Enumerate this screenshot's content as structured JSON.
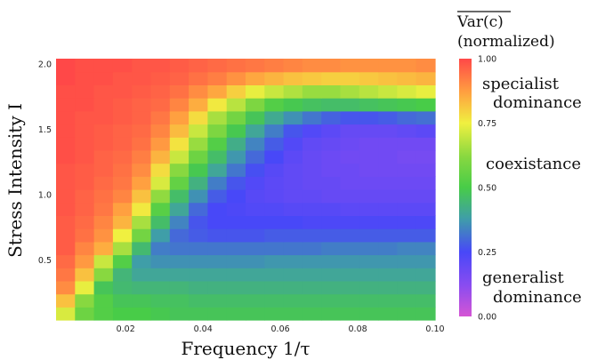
{
  "chart_data": {
    "type": "heatmap",
    "xlabel": "Frequency 1/τ",
    "ylabel": "Stress Intensity I",
    "x_range": [
      0.002,
      0.1
    ],
    "y_range": [
      0.04,
      2.04
    ],
    "x_ticks": [
      0.02,
      0.04,
      0.06,
      0.08,
      0.1
    ],
    "x_tick_labels": [
      "0.02",
      "0.04",
      "0.06",
      "0.08",
      "0.10"
    ],
    "y_ticks": [
      0.5,
      1.0,
      1.5,
      2.0
    ],
    "y_tick_labels": [
      "0.5",
      "1.0",
      "1.5",
      "2.0"
    ],
    "n_cols": 20,
    "n_rows": 20,
    "colorbar": {
      "title_line1": "Var(c)",
      "title_line2": "(normalized)",
      "range": [
        0,
        1
      ],
      "ticks": [
        0.0,
        0.25,
        0.5,
        0.75,
        1.0
      ],
      "tick_labels": [
        "0.00",
        "0.25",
        "0.50",
        "0.75",
        "1.00"
      ],
      "stops": [
        {
          "v": 0.0,
          "color": "#d555d4"
        },
        {
          "v": 0.12,
          "color": "#8a4cf0"
        },
        {
          "v": 0.25,
          "color": "#4848f8"
        },
        {
          "v": 0.38,
          "color": "#3f9ea8"
        },
        {
          "v": 0.5,
          "color": "#48cc48"
        },
        {
          "v": 0.62,
          "color": "#88d840"
        },
        {
          "v": 0.75,
          "color": "#f0f040"
        },
        {
          "v": 0.87,
          "color": "#ffa040"
        },
        {
          "v": 1.0,
          "color": "#ff4848"
        }
      ],
      "annotations": [
        {
          "line1": "specialist",
          "line2": "dominance"
        },
        {
          "line1": "coexistance",
          "line2": ""
        },
        {
          "line1": "generalist",
          "line2": "dominance"
        }
      ]
    },
    "description_of_values": "values[row][col]; row 0 = lowest I (~0.09), row 19 = highest I (~2.0); col 0 = lowest frequency (~0.004), col 19 = highest (~0.10). Normalized Var(c) in [0,1].",
    "values": [
      [
        0.72,
        0.57,
        0.52,
        0.5,
        0.5,
        0.49,
        0.48,
        0.48,
        0.48,
        0.48,
        0.48,
        0.48,
        0.48,
        0.48,
        0.48,
        0.48,
        0.48,
        0.48,
        0.48,
        0.48
      ],
      [
        0.82,
        0.62,
        0.52,
        0.48,
        0.48,
        0.47,
        0.47,
        0.46,
        0.46,
        0.46,
        0.46,
        0.46,
        0.46,
        0.46,
        0.46,
        0.46,
        0.46,
        0.46,
        0.46,
        0.46
      ],
      [
        0.9,
        0.74,
        0.48,
        0.45,
        0.44,
        0.44,
        0.44,
        0.43,
        0.43,
        0.43,
        0.43,
        0.43,
        0.43,
        0.43,
        0.43,
        0.43,
        0.43,
        0.43,
        0.43,
        0.43
      ],
      [
        0.93,
        0.82,
        0.62,
        0.44,
        0.4,
        0.4,
        0.4,
        0.4,
        0.4,
        0.4,
        0.4,
        0.4,
        0.4,
        0.4,
        0.4,
        0.4,
        0.4,
        0.4,
        0.4,
        0.4
      ],
      [
        0.95,
        0.88,
        0.7,
        0.52,
        0.38,
        0.36,
        0.36,
        0.36,
        0.36,
        0.36,
        0.36,
        0.37,
        0.37,
        0.37,
        0.37,
        0.37,
        0.37,
        0.37,
        0.37,
        0.37
      ],
      [
        0.97,
        0.91,
        0.85,
        0.66,
        0.45,
        0.33,
        0.32,
        0.32,
        0.32,
        0.32,
        0.32,
        0.32,
        0.32,
        0.32,
        0.33,
        0.33,
        0.33,
        0.33,
        0.34,
        0.34
      ],
      [
        0.97,
        0.94,
        0.89,
        0.75,
        0.58,
        0.38,
        0.3,
        0.28,
        0.27,
        0.27,
        0.27,
        0.28,
        0.28,
        0.28,
        0.28,
        0.28,
        0.28,
        0.28,
        0.28,
        0.28
      ],
      [
        0.97,
        0.95,
        0.91,
        0.84,
        0.66,
        0.46,
        0.34,
        0.27,
        0.25,
        0.25,
        0.25,
        0.25,
        0.25,
        0.24,
        0.24,
        0.24,
        0.24,
        0.24,
        0.24,
        0.24
      ],
      [
        0.98,
        0.96,
        0.93,
        0.87,
        0.76,
        0.53,
        0.4,
        0.3,
        0.25,
        0.24,
        0.23,
        0.23,
        0.22,
        0.22,
        0.22,
        0.21,
        0.21,
        0.21,
        0.21,
        0.21
      ],
      [
        0.98,
        0.96,
        0.94,
        0.91,
        0.82,
        0.63,
        0.46,
        0.36,
        0.28,
        0.25,
        0.22,
        0.21,
        0.2,
        0.2,
        0.19,
        0.19,
        0.19,
        0.19,
        0.19,
        0.19
      ],
      [
        0.98,
        0.97,
        0.95,
        0.93,
        0.87,
        0.72,
        0.55,
        0.43,
        0.33,
        0.27,
        0.23,
        0.21,
        0.2,
        0.19,
        0.19,
        0.18,
        0.18,
        0.18,
        0.18,
        0.18
      ],
      [
        0.98,
        0.97,
        0.96,
        0.94,
        0.9,
        0.78,
        0.62,
        0.49,
        0.4,
        0.32,
        0.26,
        0.22,
        0.2,
        0.19,
        0.18,
        0.18,
        0.17,
        0.17,
        0.17,
        0.17
      ],
      [
        0.99,
        0.98,
        0.96,
        0.95,
        0.92,
        0.84,
        0.7,
        0.57,
        0.46,
        0.37,
        0.3,
        0.25,
        0.21,
        0.19,
        0.18,
        0.17,
        0.17,
        0.17,
        0.16,
        0.16
      ],
      [
        0.99,
        0.98,
        0.97,
        0.96,
        0.94,
        0.88,
        0.77,
        0.64,
        0.52,
        0.42,
        0.34,
        0.28,
        0.23,
        0.2,
        0.19,
        0.18,
        0.17,
        0.17,
        0.17,
        0.17
      ],
      [
        0.99,
        0.98,
        0.97,
        0.96,
        0.95,
        0.91,
        0.83,
        0.7,
        0.6,
        0.49,
        0.4,
        0.33,
        0.27,
        0.23,
        0.21,
        0.19,
        0.19,
        0.19,
        0.2,
        0.21
      ],
      [
        0.99,
        0.98,
        0.98,
        0.97,
        0.96,
        0.93,
        0.87,
        0.78,
        0.66,
        0.58,
        0.48,
        0.41,
        0.36,
        0.32,
        0.29,
        0.27,
        0.27,
        0.28,
        0.3,
        0.31
      ],
      [
        0.99,
        0.99,
        0.98,
        0.97,
        0.96,
        0.95,
        0.91,
        0.85,
        0.76,
        0.68,
        0.6,
        0.52,
        0.49,
        0.47,
        0.46,
        0.46,
        0.47,
        0.48,
        0.49,
        0.5
      ],
      [
        0.99,
        0.99,
        0.98,
        0.98,
        0.97,
        0.96,
        0.94,
        0.9,
        0.86,
        0.8,
        0.74,
        0.7,
        0.67,
        0.64,
        0.64,
        0.66,
        0.68,
        0.7,
        0.72,
        0.74
      ],
      [
        1.0,
        0.99,
        0.99,
        0.98,
        0.98,
        0.97,
        0.96,
        0.94,
        0.92,
        0.89,
        0.86,
        0.84,
        0.82,
        0.81,
        0.8,
        0.8,
        0.81,
        0.82,
        0.83,
        0.84
      ],
      [
        1.0,
        0.99,
        0.99,
        0.99,
        0.98,
        0.98,
        0.97,
        0.96,
        0.95,
        0.94,
        0.93,
        0.92,
        0.91,
        0.9,
        0.9,
        0.89,
        0.89,
        0.89,
        0.89,
        0.9
      ]
    ]
  }
}
